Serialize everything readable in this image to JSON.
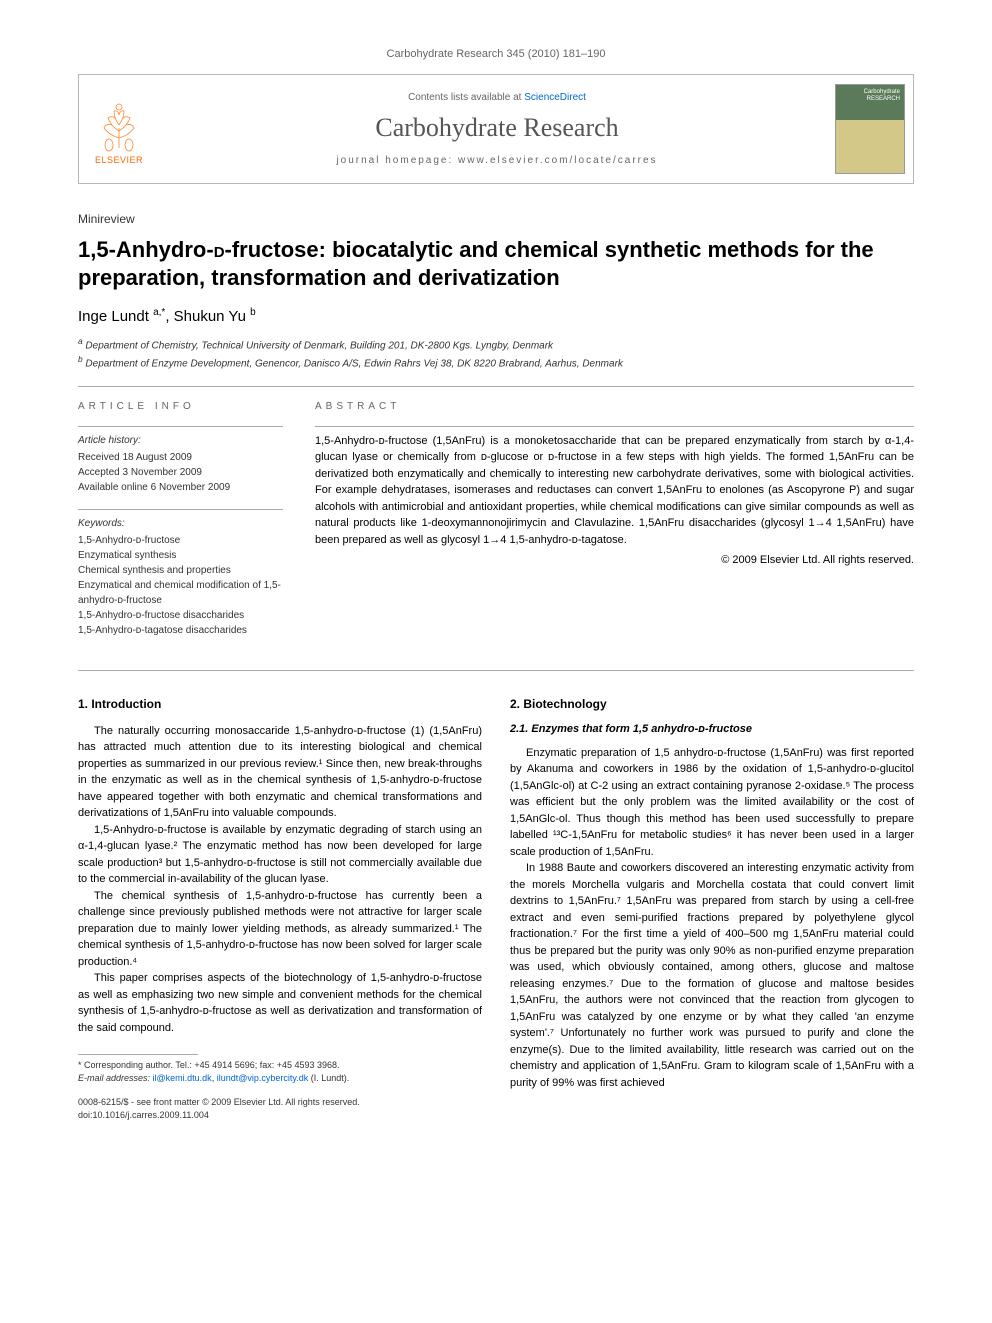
{
  "page_bg": "#ffffff",
  "text_color": "#000000",
  "link_color": "#0066cc",
  "header": {
    "citation": "Carbohydrate Research 345 (2010) 181–190",
    "contents_line_pre": "Contents lists available at ",
    "contents_link": "ScienceDirect",
    "journal_name": "Carbohydrate Research",
    "homepage_line": "journal homepage: www.elsevier.com/locate/carres",
    "elsevier_label": "ELSEVIER",
    "cover_label": "Carbohydrate RESEARCH"
  },
  "article": {
    "type": "Minireview",
    "title_pre": "1,5-Anhydro-",
    "title_sc": "d",
    "title_post": "-fructose: biocatalytic and chemical synthetic methods for the preparation, transformation and derivatization",
    "authors_html": "Inge Lundt <sup>a,*</sup>, Shukun Yu <sup>b</sup>",
    "affiliations": [
      "a Department of Chemistry, Technical University of Denmark, Building 201, DK-2800 Kgs. Lyngby, Denmark",
      "b Department of Enzyme Development, Genencor, Danisco A/S, Edwin Rahrs Vej 38, DK 8220 Brabrand, Aarhus, Denmark"
    ]
  },
  "info": {
    "heading": "ARTICLE INFO",
    "history_head": "Article history:",
    "history": [
      "Received 18 August 2009",
      "Accepted 3 November 2009",
      "Available online 6 November 2009"
    ],
    "keywords_head": "Keywords:",
    "keywords": [
      "1,5-Anhydro-ᴅ-fructose",
      "Enzymatical synthesis",
      "Chemical synthesis and properties",
      "Enzymatical and chemical modification of 1,5-anhydro-ᴅ-fructose",
      "1,5-Anhydro-ᴅ-fructose disaccharides",
      "1,5-Anhydro-ᴅ-tagatose disaccharides"
    ]
  },
  "abstract": {
    "heading": "ABSTRACT",
    "text": "1,5-Anhydro-ᴅ-fructose (1,5AnFru) is a monoketosaccharide that can be prepared enzymatically from starch by α-1,4-glucan lyase or chemically from ᴅ-glucose or ᴅ-fructose in a few steps with high yields. The formed 1,5AnFru can be derivatized both enzymatically and chemically to interesting new carbohydrate derivatives, some with biological activities. For example dehydratases, isomerases and reductases can convert 1,5AnFru to enolones (as Ascopyrone P) and sugar alcohols with antimicrobial and antioxidant properties, while chemical modifications can give similar compounds as well as natural products like 1-deoxymannonojirimycin and Clavulazine. 1,5AnFru disaccharides (glycosyl 1→4 1,5AnFru) have been prepared as well as glycosyl 1→4 1,5-anhydro-ᴅ-tagatose.",
    "copyright": "© 2009 Elsevier Ltd. All rights reserved."
  },
  "body": {
    "left": {
      "h1": "1. Introduction",
      "paras": [
        "The naturally occurring monosaccaride 1,5-anhydro-ᴅ-fructose (1) (1,5AnFru) has attracted much attention due to its interesting biological and chemical properties as summarized in our previous review.¹ Since then, new break-throughs in the enzymatic as well as in the chemical synthesis of 1,5-anhydro-ᴅ-fructose have appeared together with both enzymatic and chemical transformations and derivatizations of 1,5AnFru into valuable compounds.",
        "1,5-Anhydro-ᴅ-fructose is available by enzymatic degrading of starch using an α-1,4-glucan lyase.² The enzymatic method has now been developed for large scale production³ but 1,5-anhydro-ᴅ-fructose is still not commercially available due to the commercial in-availability of the glucan lyase.",
        "The chemical synthesis of 1,5-anhydro-ᴅ-fructose has currently been a challenge since previously published methods were not attractive for larger scale preparation due to mainly lower yielding methods, as already summarized.¹ The chemical synthesis of 1,5-anhydro-ᴅ-fructose has now been solved for larger scale production.⁴",
        "This paper comprises aspects of the biotechnology of 1,5-anhydro-ᴅ-fructose as well as emphasizing two new simple and convenient methods for the chemical synthesis of 1,5-anhydro-ᴅ-fructose as well as derivatization and transformation of the said compound."
      ]
    },
    "right": {
      "h1": "2. Biotechnology",
      "h2": "2.1. Enzymes that form 1,5 anhydro-ᴅ-fructose",
      "paras": [
        "Enzymatic preparation of 1,5 anhydro-ᴅ-fructose (1,5AnFru) was first reported by Akanuma and coworkers in 1986 by the oxidation of 1,5-anhydro-ᴅ-glucitol (1,5AnGlc-ol) at C-2 using an extract containing pyranose 2-oxidase.⁵ The process was efficient but the only problem was the limited availability or the cost of 1,5AnGlc-ol. Thus though this method has been used successfully to prepare labelled ¹³C-1,5AnFru for metabolic studies⁶ it has never been used in a larger scale production of 1,5AnFru.",
        "In 1988 Baute and coworkers discovered an interesting enzymatic activity from the morels Morchella vulgaris and Morchella costata that could convert limit dextrins to 1,5AnFru.⁷ 1,5AnFru was prepared from starch by using a cell-free extract and even semi-purified fractions prepared by polyethylene glycol fractionation.⁷ For the first time a yield of 400–500 mg 1,5AnFru material could thus be prepared but the purity was only 90% as non-purified enzyme preparation was used, which obviously contained, among others, glucose and maltose releasing enzymes.⁷ Due to the formation of glucose and maltose besides 1,5AnFru, the authors were not convinced that the reaction from glycogen to 1,5AnFru was catalyzed by one enzyme or by what they called 'an enzyme system'.⁷ Unfortunately no further work was pursued to purify and clone the enzyme(s). Due to the limited availability, little research was carried out on the chemistry and application of 1,5AnFru. Gram to kilogram scale of 1,5AnFru with a purity of 99% was first achieved"
      ]
    }
  },
  "footnote": {
    "corr": "* Corresponding author. Tel.: +45 4914 5696; fax: +45 4593 3968.",
    "email_label": "E-mail addresses: ",
    "email1": "il@kemi.dtu.dk",
    "email_sep": ", ",
    "email2": "ilundt@vip.cybercity.dk",
    "email_post": " (I. Lundt)."
  },
  "bottom": {
    "line1": "0008-6215/$ - see front matter © 2009 Elsevier Ltd. All rights reserved.",
    "line2": "doi:10.1016/j.carres.2009.11.004"
  },
  "colors": {
    "border_gray": "#b8b8b8",
    "text_gray": "#666666",
    "elsevier_orange": "#ff6600",
    "hr_gray": "#aaaaaa"
  }
}
